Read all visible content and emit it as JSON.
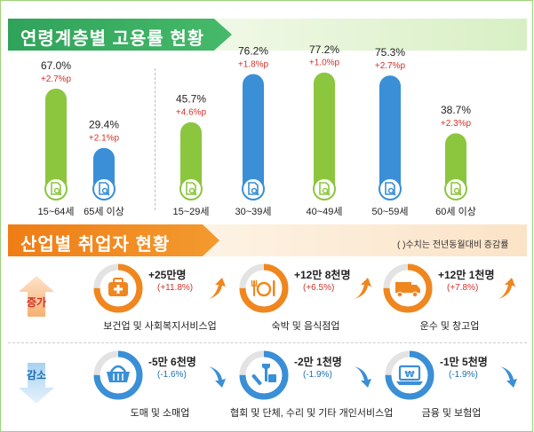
{
  "section1": {
    "title": "연령계층별 고용률 현황"
  },
  "chart_data": {
    "type": "bar",
    "title": "연령계층별 고용률 현황",
    "categories": [
      "15~64세",
      "65세 이상",
      "15~29세",
      "30~39세",
      "40~49세",
      "50~59세",
      "60세 이상"
    ],
    "values": [
      67.0,
      29.4,
      45.7,
      76.2,
      77.2,
      75.3,
      38.7
    ],
    "value_labels": [
      "67.0%",
      "29.4%",
      "45.7%",
      "76.2%",
      "77.2%",
      "75.3%",
      "38.7%"
    ],
    "change_labels": [
      "+2.7%p",
      "+2.1%p",
      "+4.6%p",
      "+1.8%p",
      "+1.0%p",
      "+2.7%p",
      "+2.3%p"
    ],
    "bar_colors": [
      "#8cc63f",
      "#3a8fd6",
      "#8cc63f",
      "#3a8fd6",
      "#8cc63f",
      "#3a8fd6",
      "#8cc63f"
    ],
    "ylim": [
      0,
      100
    ],
    "grid": false,
    "icon": "document-search-icon"
  },
  "section2": {
    "title": "산업별 취업자 현황",
    "note": "( )수치는 전년동월대비 증감률",
    "increase_label": "증가",
    "decrease_label": "감소",
    "increase": [
      {
        "value": "+25만명",
        "change": "(+11.8%)",
        "name": "보건업 및 사회복지서비스업",
        "icon": "medical-kit-icon",
        "progress": 0.75
      },
      {
        "value": "+12만 8천명",
        "change": "(+6.5%)",
        "name": "숙박 및 음식점업",
        "icon": "dining-plate-icon",
        "progress": 0.75
      },
      {
        "value": "+12만 1천명",
        "change": "(+7.8%)",
        "name": "운수 및 창고업",
        "icon": "delivery-truck-icon",
        "progress": 0.75
      }
    ],
    "decrease": [
      {
        "value": "-5만 6천명",
        "change": "(-1.6%)",
        "name": "도매 및 소매업",
        "icon": "shopping-basket-icon",
        "progress": 0.75
      },
      {
        "value": "-2만 1천명",
        "change": "(-1.9%)",
        "name": "협회 및 단체, 수리 및 기타 개인서비스업",
        "icon": "tools-icon",
        "progress": 0.75
      },
      {
        "value": "-1만 5천명",
        "change": "(-1.9%)",
        "name": "금융 및 보험업",
        "icon": "won-laptop-icon",
        "progress": 0.75
      }
    ]
  },
  "colors": {
    "green": "#8cc63f",
    "blue": "#3a8fd6",
    "orange": "#f0861e",
    "red": "#d0322a",
    "navy": "#1b6fb4"
  }
}
